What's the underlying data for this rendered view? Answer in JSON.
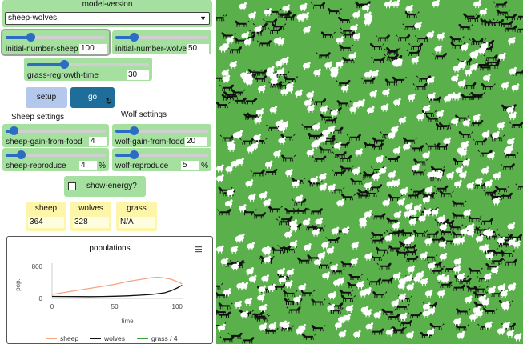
{
  "model_chooser": {
    "title": "model-version",
    "selected": "sheep-wolves"
  },
  "sliders": {
    "initial_number_sheep": {
      "label": "initial-number-sheep",
      "value": "100",
      "fraction": 0.25
    },
    "initial_number_wolves": {
      "label": "initial-number-wolves",
      "value": "50",
      "fraction": 0.2
    },
    "grass_regrowth_time": {
      "label": "grass-regrowth-time",
      "value": "30",
      "fraction": 0.3
    },
    "sheep_gain_from_food": {
      "label": "sheep-gain-from-food",
      "value": "4",
      "fraction": 0.08
    },
    "wolf_gain_from_food": {
      "label": "wolf-gain-from-food",
      "value": "20",
      "fraction": 0.2
    },
    "sheep_reproduce": {
      "label": "sheep-reproduce",
      "value": "4",
      "unit": "%",
      "fraction": 0.15
    },
    "wolf_reproduce": {
      "label": "wolf-reproduce",
      "value": "5",
      "unit": "%",
      "fraction": 0.2
    }
  },
  "buttons": {
    "setup": "setup",
    "go": "go",
    "go_forever_icon": "forever-icon"
  },
  "notes": {
    "sheep_settings": "Sheep settings",
    "wolf_settings": "Wolf settings"
  },
  "switch": {
    "label": "show-energy?",
    "checked": false
  },
  "monitors": [
    {
      "label": "sheep",
      "value": "364"
    },
    {
      "label": "wolves",
      "value": "328"
    },
    {
      "label": "grass",
      "value": "N/A"
    }
  ],
  "plot": {
    "menu_icon": "hamburger-menu-icon",
    "chart_data": {
      "type": "line",
      "title": "populations",
      "xlabel": "time",
      "ylabel": "pop.",
      "xlim": [
        0,
        105
      ],
      "ylim": [
        0,
        800
      ],
      "x_ticks": [
        "0",
        "50",
        "100"
      ],
      "y_ticks": [
        "0",
        "800"
      ],
      "grid": false,
      "legend_position": "bottom",
      "series": [
        {
          "name": "sheep",
          "color": "#f4a582",
          "points": [
            [
              0,
              100
            ],
            [
              10,
              150
            ],
            [
              20,
              200
            ],
            [
              30,
              250
            ],
            [
              40,
              300
            ],
            [
              50,
              350
            ],
            [
              60,
              420
            ],
            [
              70,
              470
            ],
            [
              80,
              520
            ],
            [
              85,
              530
            ],
            [
              90,
              510
            ],
            [
              95,
              480
            ],
            [
              100,
              420
            ],
            [
              104,
              364
            ]
          ]
        },
        {
          "name": "wolves",
          "color": "#111111",
          "points": [
            [
              0,
              50
            ],
            [
              10,
              48
            ],
            [
              20,
              46
            ],
            [
              30,
              45
            ],
            [
              40,
              48
            ],
            [
              50,
              55
            ],
            [
              60,
              65
            ],
            [
              70,
              80
            ],
            [
              80,
              100
            ],
            [
              90,
              140
            ],
            [
              95,
              190
            ],
            [
              100,
              260
            ],
            [
              104,
              328
            ]
          ]
        },
        {
          "name": "grass / 4",
          "color": "#3aa63a",
          "points": []
        }
      ]
    }
  },
  "world": {
    "background": "#5ab04a"
  }
}
